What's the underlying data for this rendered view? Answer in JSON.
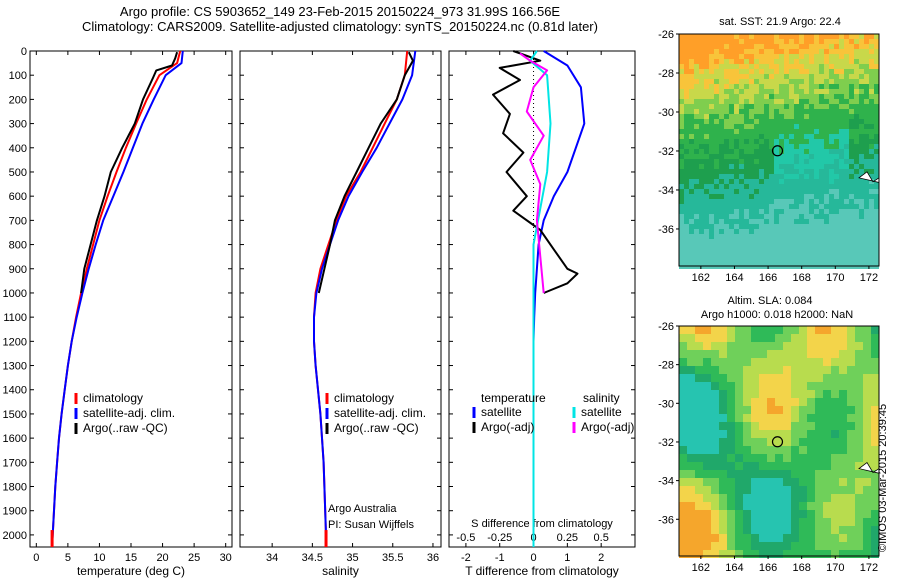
{
  "header": {
    "line1": "Argo profile: CS 5903652_149 23-Feb-2015 20150224_973 31.99S 166.56E",
    "line2": "Climatology: CARS2009. Satellite-adjusted climatology: synTS_20150224.nc (0.81d later)"
  },
  "credit": "©IMOS 03-Mar-2015 20:39:45",
  "colors": {
    "climatology": "#ff0000",
    "satellite": "#0000ff",
    "argo": "#000000",
    "sal_satellite": "#00e5e5",
    "sal_argo": "#ff00ff"
  },
  "chart_data": [
    {
      "type": "line",
      "id": "temperature",
      "xlabel": "temperature (deg C)",
      "xlim": [
        -1,
        31
      ],
      "xticks": [
        0,
        5,
        10,
        15,
        20,
        25,
        30
      ],
      "ylim": [
        2050,
        0
      ],
      "yticks": [
        0,
        100,
        200,
        300,
        400,
        500,
        600,
        700,
        800,
        900,
        1000,
        1100,
        1200,
        1300,
        1400,
        1500,
        1600,
        1700,
        1800,
        1900,
        2000
      ],
      "legend": [
        "climatology",
        "satellite-adj. clim.",
        "Argo(..raw -QC)"
      ],
      "series": [
        {
          "name": "climatology",
          "color": "#ff0000",
          "points": [
            [
              22.8,
              0
            ],
            [
              22.3,
              50
            ],
            [
              19.5,
              100
            ],
            [
              17.5,
              200
            ],
            [
              15.8,
              300
            ],
            [
              14.2,
              400
            ],
            [
              12.7,
              500
            ],
            [
              11.3,
              600
            ],
            [
              10.0,
              700
            ],
            [
              9.0,
              800
            ],
            [
              8.0,
              900
            ],
            [
              7.1,
              1000
            ],
            [
              6.3,
              1100
            ],
            [
              5.6,
              1200
            ],
            [
              5.0,
              1300
            ],
            [
              4.5,
              1400
            ],
            [
              4.0,
              1500
            ],
            [
              3.6,
              1600
            ],
            [
              3.3,
              1700
            ],
            [
              3.0,
              1800
            ],
            [
              2.8,
              1900
            ],
            [
              2.6,
              2000
            ],
            [
              2.5,
              2050
            ]
          ]
        },
        {
          "name": "satellite-adj. clim.",
          "color": "#0000ff",
          "points": [
            [
              23.2,
              0
            ],
            [
              23.0,
              50
            ],
            [
              20.5,
              100
            ],
            [
              18.6,
              200
            ],
            [
              16.8,
              300
            ],
            [
              15.3,
              400
            ],
            [
              13.8,
              500
            ],
            [
              12.2,
              600
            ],
            [
              10.6,
              700
            ],
            [
              9.4,
              800
            ],
            [
              8.3,
              900
            ],
            [
              7.3,
              1000
            ],
            [
              6.4,
              1100
            ],
            [
              5.6,
              1200
            ],
            [
              5.0,
              1300
            ],
            [
              4.5,
              1400
            ],
            [
              4.0,
              1500
            ],
            [
              3.6,
              1600
            ],
            [
              3.3,
              1700
            ],
            [
              3.0,
              1800
            ],
            [
              2.8,
              1900
            ],
            [
              2.6,
              2000
            ],
            [
              2.5,
              2050
            ]
          ]
        },
        {
          "name": "Argo(..raw -QC)",
          "color": "#000000",
          "points": [
            [
              22.3,
              5
            ],
            [
              22.0,
              30
            ],
            [
              21.5,
              60
            ],
            [
              19.0,
              80
            ],
            [
              18.5,
              110
            ],
            [
              16.9,
              200
            ],
            [
              15.6,
              300
            ],
            [
              13.6,
              400
            ],
            [
              11.8,
              500
            ],
            [
              10.8,
              600
            ],
            [
              9.6,
              700
            ],
            [
              8.6,
              800
            ],
            [
              7.6,
              900
            ],
            [
              7.1,
              1000
            ]
          ]
        }
      ]
    },
    {
      "type": "line",
      "id": "salinity",
      "xlabel": "salinity",
      "xlim": [
        33.6,
        36.1
      ],
      "xticks": [
        34,
        34.5,
        35,
        35.5,
        36
      ],
      "ylim": [
        2050,
        0
      ],
      "legend": [
        "climatology",
        "satellite-adj. clim.",
        "Argo(..raw -QC)"
      ],
      "annotation": [
        "Argo Australia",
        "PI: Susan Wijffels"
      ],
      "series": [
        {
          "name": "climatology",
          "color": "#ff0000",
          "points": [
            [
              35.68,
              0
            ],
            [
              35.65,
              100
            ],
            [
              35.55,
              200
            ],
            [
              35.4,
              300
            ],
            [
              35.25,
              400
            ],
            [
              35.1,
              500
            ],
            [
              34.92,
              600
            ],
            [
              34.8,
              700
            ],
            [
              34.7,
              800
            ],
            [
              34.6,
              900
            ],
            [
              34.54,
              1000
            ],
            [
              34.52,
              1100
            ],
            [
              34.52,
              1200
            ],
            [
              34.54,
              1300
            ],
            [
              34.57,
              1400
            ],
            [
              34.6,
              1500
            ],
            [
              34.62,
              1600
            ],
            [
              34.64,
              1700
            ],
            [
              34.65,
              1800
            ],
            [
              34.66,
              1900
            ],
            [
              34.67,
              2000
            ],
            [
              34.67,
              2050
            ]
          ]
        },
        {
          "name": "satellite-adj. clim.",
          "color": "#0000ff",
          "points": [
            [
              35.78,
              0
            ],
            [
              35.74,
              100
            ],
            [
              35.62,
              200
            ],
            [
              35.46,
              300
            ],
            [
              35.3,
              400
            ],
            [
              35.12,
              500
            ],
            [
              34.95,
              600
            ],
            [
              34.82,
              700
            ],
            [
              34.72,
              800
            ],
            [
              34.62,
              900
            ],
            [
              34.55,
              1000
            ],
            [
              34.52,
              1100
            ],
            [
              34.52,
              1200
            ],
            [
              34.54,
              1300
            ],
            [
              34.57,
              1400
            ],
            [
              34.6,
              1500
            ],
            [
              34.62,
              1600
            ],
            [
              34.64,
              1700
            ],
            [
              34.65,
              1800
            ],
            [
              34.66,
              1900
            ],
            [
              34.67,
              2000
            ],
            [
              34.67,
              2050
            ]
          ]
        },
        {
          "name": "Argo(..raw -QC)",
          "color": "#000000",
          "points": [
            [
              35.7,
              5
            ],
            [
              35.75,
              40
            ],
            [
              35.65,
              100
            ],
            [
              35.55,
              200
            ],
            [
              35.35,
              300
            ],
            [
              35.2,
              400
            ],
            [
              35.05,
              500
            ],
            [
              34.9,
              600
            ],
            [
              34.78,
              700
            ],
            [
              34.72,
              800
            ],
            [
              34.65,
              900
            ],
            [
              34.58,
              1000
            ]
          ]
        }
      ]
    },
    {
      "type": "line",
      "id": "difference",
      "xlabel": "T difference from climatology",
      "xlabel_top": "S difference from climatology",
      "xlim": [
        -2.5,
        3.0
      ],
      "xticks": [
        -2,
        -1,
        0,
        1,
        2
      ],
      "sticks_labels": [
        "-0.5",
        "-0.25",
        "0",
        "0.25",
        "0.5"
      ],
      "sticks_positions": [
        -2,
        -1,
        0,
        1,
        2
      ],
      "ylim": [
        2050,
        0
      ],
      "legend_left_title": "temperature",
      "legend_right_title": "salinity",
      "legend": [
        "satellite",
        "Argo(-adj)",
        "satellite",
        "Argo(-adj)"
      ],
      "series": [
        {
          "name": "temperature satellite",
          "color": "#0000ff",
          "points": [
            [
              0.3,
              0
            ],
            [
              1.0,
              60
            ],
            [
              1.4,
              150
            ],
            [
              1.5,
              300
            ],
            [
              1.0,
              500
            ],
            [
              0.6,
              600
            ],
            [
              0.3,
              700
            ],
            [
              0.15,
              800
            ],
            [
              0.1,
              900
            ],
            [
              0.05,
              1000
            ],
            [
              0.02,
              1100
            ],
            [
              0.0,
              1200
            ],
            [
              0.0,
              1400
            ],
            [
              0.0,
              2050
            ]
          ]
        },
        {
          "name": "temperature Argo(-adj)",
          "color": "#000000",
          "points": [
            [
              -0.6,
              0
            ],
            [
              0.2,
              40
            ],
            [
              -1.0,
              70
            ],
            [
              -0.4,
              120
            ],
            [
              -1.2,
              180
            ],
            [
              -0.7,
              260
            ],
            [
              -0.9,
              340
            ],
            [
              -0.3,
              420
            ],
            [
              -0.8,
              500
            ],
            [
              -0.2,
              600
            ],
            [
              -0.6,
              660
            ],
            [
              0.2,
              740
            ],
            [
              0.6,
              820
            ],
            [
              1.0,
              900
            ],
            [
              1.3,
              920
            ],
            [
              1.0,
              960
            ],
            [
              0.3,
              1000
            ]
          ]
        },
        {
          "name": "salinity satellite",
          "color": "#00e5e5",
          "points": [
            [
              0.1,
              0
            ],
            [
              -0.1,
              40
            ],
            [
              0.4,
              100
            ],
            [
              0.5,
              300
            ],
            [
              0.4,
              500
            ],
            [
              0.2,
              650
            ],
            [
              0.0,
              800
            ],
            [
              0.0,
              1000
            ],
            [
              0.0,
              2050
            ]
          ]
        },
        {
          "name": "salinity Argo(-adj)",
          "color": "#ff00ff",
          "points": [
            [
              -0.4,
              10
            ],
            [
              -0.1,
              40
            ],
            [
              0.4,
              80
            ],
            [
              0.0,
              150
            ],
            [
              -0.2,
              250
            ],
            [
              0.3,
              350
            ],
            [
              -0.1,
              450
            ],
            [
              0.2,
              550
            ],
            [
              0.1,
              700
            ],
            [
              0.2,
              850
            ],
            [
              0.3,
              1000
            ]
          ]
        }
      ]
    },
    {
      "type": "heatmap",
      "id": "sst-map",
      "title": "sat. SST: 21.9 Argo: 22.4",
      "xlim": [
        160.7,
        172.6
      ],
      "ylim": [
        -37.9,
        -26
      ],
      "xticks": [
        162,
        164,
        166,
        168,
        170,
        172
      ],
      "yticks": [
        -26,
        -28,
        -30,
        -32,
        -34,
        -36
      ],
      "marker": [
        166.56,
        -31.99
      ]
    },
    {
      "type": "heatmap",
      "id": "sla-map",
      "title_line1": "Altim. SLA: 0.084",
      "title_line2": "Argo h1000: 0.018 h2000: NaN",
      "xlim": [
        160.7,
        172.6
      ],
      "ylim": [
        -37.9,
        -26
      ],
      "xticks": [
        162,
        164,
        166,
        168,
        170,
        172
      ],
      "yticks": [
        -26,
        -28,
        -30,
        -32,
        -34,
        -36
      ],
      "marker": [
        166.56,
        -31.99
      ]
    }
  ]
}
